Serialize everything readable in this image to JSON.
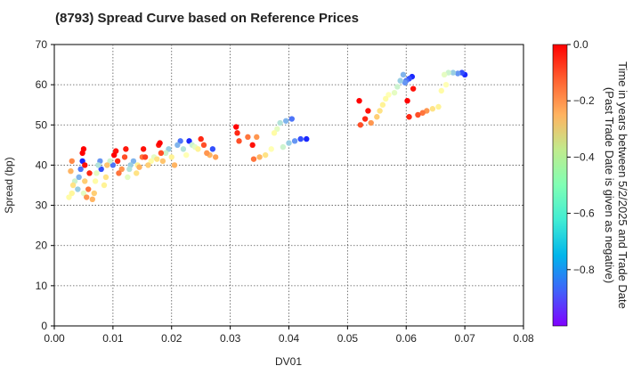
{
  "chart_data": {
    "type": "scatter",
    "title": "(8793)   Spread Curve based on Reference Prices",
    "xlabel": "DV01",
    "ylabel": "Spread (bp)",
    "xlim": [
      0,
      0.08
    ],
    "ylim": [
      0,
      70
    ],
    "x_ticks": [
      "0.00",
      "0.01",
      "0.02",
      "0.03",
      "0.04",
      "0.05",
      "0.06",
      "0.07",
      "0.08"
    ],
    "y_ticks": [
      "0",
      "10",
      "20",
      "30",
      "40",
      "50",
      "60",
      "70"
    ],
    "grid": true,
    "colorbar": {
      "label_line1": "Time in years between 5/2/2025 and Trade Date",
      "label_line2": "(Past Trade Date is given as negative)",
      "range": [
        -1.0,
        0.0
      ],
      "ticks": [
        "0.0",
        "−0.2",
        "−0.4",
        "−0.6",
        "−0.8"
      ],
      "colormap": "rainbow"
    },
    "series": [
      {
        "points": [
          [
            0.0025,
            32.0,
            -0.45
          ],
          [
            0.003,
            33.0,
            -0.42
          ],
          [
            0.0032,
            35.0,
            -0.35
          ],
          [
            0.0028,
            38.5,
            -0.25
          ],
          [
            0.003,
            41.0,
            -0.18
          ],
          [
            0.0035,
            36.0,
            -0.6
          ],
          [
            0.004,
            34.0,
            -0.7
          ],
          [
            0.0042,
            37.0,
            -0.75
          ],
          [
            0.0045,
            39.0,
            -0.85
          ],
          [
            0.0048,
            41.0,
            -0.95
          ],
          [
            0.005,
            33.0,
            -0.55
          ],
          [
            0.0052,
            36.0,
            -0.3
          ],
          [
            0.0055,
            32.0,
            -0.2
          ],
          [
            0.0058,
            34.0,
            -0.15
          ],
          [
            0.006,
            38.0,
            -0.05
          ],
          [
            0.0048,
            43.0,
            0.0
          ],
          [
            0.005,
            44.0,
            0.0
          ],
          [
            0.0052,
            40.0,
            -0.02
          ],
          [
            0.0065,
            31.5,
            -0.25
          ],
          [
            0.0068,
            33.0,
            -0.3
          ],
          [
            0.007,
            36.0,
            -0.45
          ],
          [
            0.0072,
            38.0,
            -0.55
          ],
          [
            0.0075,
            40.0,
            -0.65
          ],
          [
            0.0078,
            41.0,
            -0.8
          ],
          [
            0.008,
            39.0,
            -0.9
          ],
          [
            0.0085,
            35.0,
            -0.4
          ],
          [
            0.0088,
            37.0,
            -0.35
          ],
          [
            0.009,
            40.0,
            -0.28
          ],
          [
            0.0095,
            41.0,
            -0.6
          ],
          [
            0.01,
            40.0,
            -0.85
          ],
          [
            0.0102,
            42.5,
            0.0
          ],
          [
            0.0105,
            43.5,
            -0.02
          ],
          [
            0.0108,
            41.0,
            -0.05
          ],
          [
            0.011,
            38.0,
            -0.15
          ],
          [
            0.0115,
            39.0,
            -0.2
          ],
          [
            0.012,
            42.0,
            -0.1
          ],
          [
            0.0122,
            44.0,
            -0.03
          ],
          [
            0.0125,
            37.0,
            -0.55
          ],
          [
            0.0128,
            39.0,
            -0.65
          ],
          [
            0.013,
            40.0,
            -0.7
          ],
          [
            0.0135,
            41.0,
            -0.75
          ],
          [
            0.014,
            38.0,
            -0.35
          ],
          [
            0.0142,
            40.0,
            -0.4
          ],
          [
            0.0145,
            39.5,
            -0.25
          ],
          [
            0.015,
            42.0,
            -0.15
          ],
          [
            0.0152,
            44.0,
            -0.02
          ],
          [
            0.0155,
            42.0,
            -0.08
          ],
          [
            0.016,
            40.0,
            -0.3
          ],
          [
            0.0165,
            41.0,
            -0.45
          ],
          [
            0.017,
            42.0,
            -0.55
          ],
          [
            0.0175,
            41.5,
            -0.35
          ],
          [
            0.0178,
            45.0,
            -0.03
          ],
          [
            0.018,
            45.5,
            0.0
          ],
          [
            0.0182,
            43.0,
            -0.1
          ],
          [
            0.0185,
            41.0,
            -0.28
          ],
          [
            0.019,
            43.0,
            -0.6
          ],
          [
            0.0195,
            44.0,
            -0.7
          ],
          [
            0.02,
            42.0,
            -0.4
          ],
          [
            0.0205,
            40.0,
            -0.25
          ],
          [
            0.021,
            45.0,
            -0.75
          ],
          [
            0.0215,
            46.0,
            -0.85
          ],
          [
            0.022,
            44.0,
            -0.65
          ],
          [
            0.0225,
            42.5,
            -0.5
          ],
          [
            0.023,
            46.0,
            -0.95
          ],
          [
            0.0235,
            45.0,
            -0.6
          ],
          [
            0.024,
            44.5,
            -0.55
          ],
          [
            0.0245,
            44.0,
            -0.4
          ],
          [
            0.025,
            46.5,
            -0.05
          ],
          [
            0.0255,
            45.0,
            -0.1
          ],
          [
            0.026,
            43.0,
            -0.2
          ],
          [
            0.0265,
            42.5,
            -0.25
          ],
          [
            0.027,
            44.0,
            -0.9
          ],
          [
            0.0275,
            42.0,
            -0.22
          ],
          [
            0.031,
            49.5,
            0.0
          ],
          [
            0.0312,
            48.0,
            -0.05
          ],
          [
            0.0315,
            46.0,
            -0.1
          ],
          [
            0.033,
            47.0,
            -0.15
          ],
          [
            0.0338,
            45.0,
            -0.02
          ],
          [
            0.0345,
            47.0,
            -0.2
          ],
          [
            0.034,
            41.5,
            -0.15
          ],
          [
            0.035,
            42.0,
            -0.25
          ],
          [
            0.036,
            42.5,
            -0.35
          ],
          [
            0.037,
            44.0,
            -0.5
          ],
          [
            0.0375,
            48.0,
            -0.45
          ],
          [
            0.038,
            49.0,
            -0.55
          ],
          [
            0.0385,
            50.5,
            -0.65
          ],
          [
            0.039,
            44.5,
            -0.6
          ],
          [
            0.0395,
            51.0,
            -0.75
          ],
          [
            0.04,
            45.5,
            -0.7
          ],
          [
            0.0405,
            51.5,
            -0.85
          ],
          [
            0.041,
            46.0,
            -0.8
          ],
          [
            0.042,
            46.5,
            -0.9
          ],
          [
            0.043,
            46.5,
            -0.95
          ],
          [
            0.052,
            56.0,
            0.0
          ],
          [
            0.0522,
            50.0,
            -0.1
          ],
          [
            0.053,
            51.5,
            -0.05
          ],
          [
            0.0535,
            53.5,
            -0.02
          ],
          [
            0.054,
            50.5,
            -0.2
          ],
          [
            0.055,
            52.0,
            -0.3
          ],
          [
            0.0555,
            53.5,
            -0.35
          ],
          [
            0.056,
            55.0,
            -0.4
          ],
          [
            0.0565,
            56.5,
            -0.45
          ],
          [
            0.057,
            57.5,
            -0.5
          ],
          [
            0.058,
            58.0,
            -0.55
          ],
          [
            0.0585,
            59.5,
            -0.6
          ],
          [
            0.059,
            61.0,
            -0.7
          ],
          [
            0.0595,
            62.5,
            -0.75
          ],
          [
            0.0598,
            60.5,
            -0.8
          ],
          [
            0.06,
            61.0,
            -0.85
          ],
          [
            0.0605,
            61.5,
            -0.9
          ],
          [
            0.061,
            62.0,
            -0.95
          ],
          [
            0.0602,
            56.0,
            0.0
          ],
          [
            0.0605,
            52.0,
            -0.05
          ],
          [
            0.0612,
            59.0,
            -0.02
          ],
          [
            0.062,
            52.5,
            -0.1
          ],
          [
            0.0628,
            53.0,
            -0.15
          ],
          [
            0.0635,
            53.5,
            -0.2
          ],
          [
            0.0645,
            54.0,
            -0.35
          ],
          [
            0.0655,
            54.5,
            -0.4
          ],
          [
            0.066,
            58.5,
            -0.45
          ],
          [
            0.0665,
            62.5,
            -0.55
          ],
          [
            0.0668,
            60.0,
            -0.5
          ],
          [
            0.0672,
            63.0,
            -0.6
          ],
          [
            0.068,
            63.0,
            -0.7
          ],
          [
            0.0688,
            62.8,
            -0.8
          ],
          [
            0.0695,
            63.0,
            -0.9
          ],
          [
            0.07,
            62.5,
            -0.95
          ]
        ]
      }
    ]
  }
}
